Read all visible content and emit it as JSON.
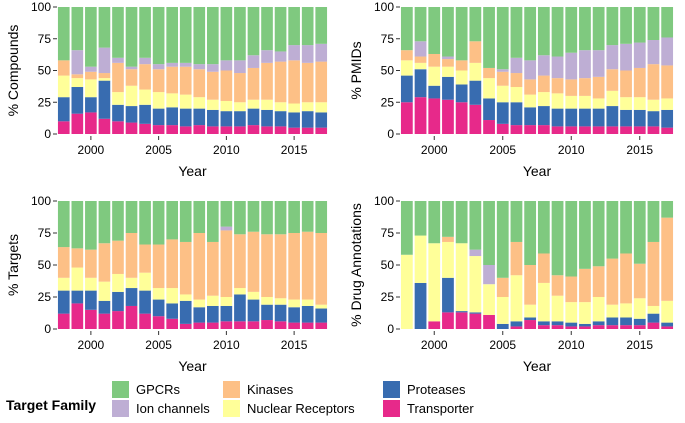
{
  "chart_data": {
    "type": "bar",
    "stacked": true,
    "x": [
      1998,
      1999,
      2000,
      2001,
      2002,
      2003,
      2004,
      2005,
      2006,
      2007,
      2008,
      2009,
      2010,
      2011,
      2012,
      2013,
      2014,
      2015,
      2016,
      2017
    ],
    "xticks": [
      "2000",
      "2005",
      "2010",
      "2015"
    ],
    "yticks": [
      "0",
      "25",
      "50",
      "75",
      "100"
    ],
    "ylim": [
      0,
      100
    ],
    "xlabel": "Year",
    "legend": {
      "title": "Target Family",
      "position": "bottom",
      "order": [
        "GPCRs",
        "Ion channels",
        "Kinases",
        "Nuclear Receptors",
        "Proteases",
        "Transporter"
      ]
    },
    "colors": {
      "Transporter": "#e7298a",
      "Proteases": "#386cb0",
      "Nuclear Receptors": "#ffff99",
      "Kinases": "#fdc086",
      "Ion channels": "#beaed4",
      "GPCRs": "#7fc97f"
    },
    "stack_order": [
      "Transporter",
      "Proteases",
      "Nuclear Receptors",
      "Kinases",
      "Ion channels"
    ],
    "panels": [
      {
        "ylabel": "% Compounds",
        "series": {
          "Transporter": [
            10,
            16,
            17,
            12,
            10,
            9,
            8,
            7,
            7,
            6,
            7,
            6,
            6,
            6,
            7,
            6,
            6,
            5,
            5,
            5
          ],
          "Proteases": [
            19,
            21,
            12,
            30,
            13,
            13,
            15,
            13,
            14,
            14,
            13,
            13,
            12,
            12,
            13,
            13,
            12,
            12,
            13,
            12
          ],
          "Nuclear Receptors": [
            17,
            7,
            14,
            2,
            10,
            16,
            12,
            13,
            11,
            11,
            9,
            8,
            8,
            7,
            7,
            8,
            7,
            7,
            7,
            8
          ],
          "Kinases": [
            12,
            3,
            6,
            4,
            23,
            13,
            20,
            18,
            21,
            22,
            22,
            22,
            24,
            23,
            25,
            29,
            32,
            34,
            31,
            32
          ],
          "Ion channels": [
            0,
            19,
            4,
            20,
            4,
            2,
            5,
            4,
            3,
            3,
            4,
            6,
            8,
            10,
            10,
            10,
            8,
            12,
            14,
            14
          ]
        }
      },
      {
        "ylabel": "% PMIDs",
        "series": {
          "Transporter": [
            25,
            29,
            28,
            27,
            25,
            23,
            11,
            8,
            7,
            7,
            7,
            6,
            6,
            6,
            6,
            6,
            6,
            6,
            6,
            5
          ],
          "Proteases": [
            21,
            22,
            10,
            18,
            14,
            19,
            17,
            17,
            18,
            14,
            15,
            14,
            14,
            14,
            14,
            16,
            13,
            13,
            12,
            14
          ],
          "Nuclear Receptors": [
            12,
            5,
            15,
            8,
            11,
            14,
            16,
            13,
            12,
            10,
            11,
            12,
            10,
            10,
            8,
            12,
            10,
            10,
            9,
            9
          ],
          "Kinases": [
            8,
            5,
            10,
            6,
            8,
            17,
            8,
            11,
            11,
            12,
            13,
            12,
            13,
            14,
            17,
            17,
            21,
            23,
            28,
            26
          ],
          "Ion channels": [
            0,
            12,
            0,
            2,
            0,
            0,
            0,
            2,
            12,
            15,
            16,
            17,
            21,
            22,
            21,
            19,
            21,
            20,
            19,
            22
          ]
        }
      },
      {
        "ylabel": "% Targets",
        "series": {
          "Transporter": [
            12,
            20,
            15,
            12,
            14,
            18,
            12,
            10,
            8,
            4,
            5,
            5,
            6,
            6,
            6,
            7,
            6,
            5,
            5,
            5
          ],
          "Proteases": [
            18,
            10,
            15,
            10,
            15,
            14,
            18,
            13,
            12,
            18,
            12,
            13,
            12,
            21,
            17,
            12,
            13,
            12,
            13,
            11
          ],
          "Nuclear Receptors": [
            10,
            18,
            10,
            15,
            14,
            8,
            14,
            9,
            12,
            5,
            6,
            8,
            7,
            5,
            6,
            6,
            5,
            6,
            5,
            3
          ],
          "Kinases": [
            24,
            15,
            22,
            30,
            26,
            35,
            22,
            34,
            38,
            41,
            52,
            42,
            52,
            42,
            47,
            49,
            50,
            52,
            53,
            56
          ],
          "Ion channels": [
            0,
            0,
            0,
            0,
            0,
            0,
            0,
            0,
            0,
            0,
            0,
            0,
            3,
            0,
            0,
            0,
            0,
            0,
            0,
            0
          ]
        }
      },
      {
        "ylabel": "% Drug Annotations",
        "series": {
          "Transporter": [
            0,
            0,
            6,
            13,
            13,
            12,
            11,
            0,
            2,
            7,
            3,
            3,
            2,
            2,
            3,
            3,
            3,
            3,
            5,
            2
          ],
          "Proteases": [
            0,
            36,
            0,
            27,
            1,
            1,
            0,
            4,
            4,
            2,
            3,
            3,
            3,
            2,
            3,
            6,
            6,
            5,
            7,
            3
          ],
          "Nuclear Receptors": [
            58,
            37,
            61,
            28,
            53,
            44,
            24,
            21,
            36,
            10,
            30,
            20,
            16,
            17,
            19,
            10,
            11,
            16,
            6,
            17
          ],
          "Kinases": [
            0,
            0,
            0,
            4,
            0,
            0,
            0,
            15,
            26,
            31,
            23,
            16,
            20,
            26,
            24,
            36,
            39,
            27,
            50,
            65
          ],
          "Ion channels": [
            0,
            0,
            0,
            0,
            0,
            5,
            15,
            0,
            0,
            0,
            0,
            0,
            0,
            0,
            0,
            0,
            0,
            0,
            0,
            0
          ]
        }
      }
    ]
  }
}
